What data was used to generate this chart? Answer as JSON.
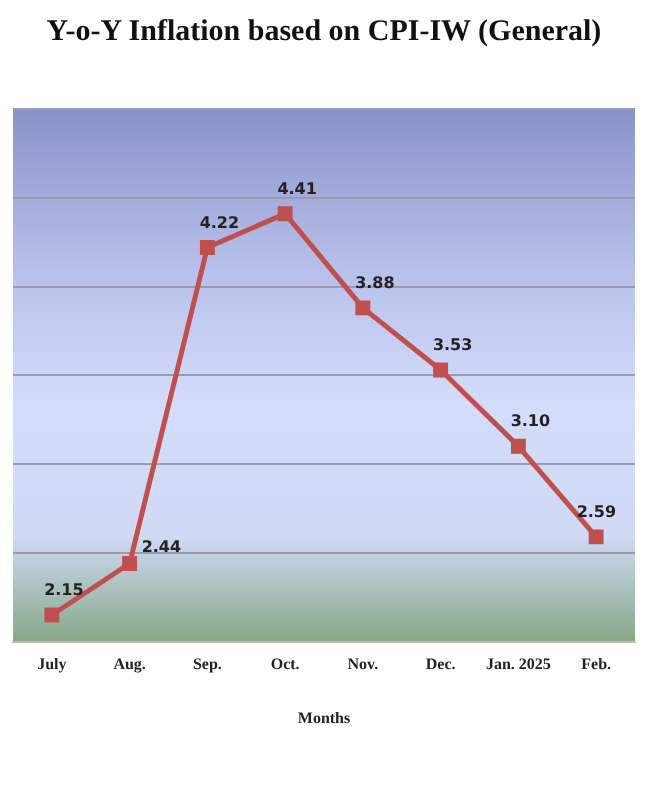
{
  "chart_data": {
    "type": "line",
    "title": "Y-o-Y Inflation based on CPI-IW (General)",
    "xlabel": "Months",
    "categories": [
      "July",
      "Aug.",
      "Sep.",
      "Oct.",
      "Nov.",
      "Dec.",
      "Jan. 2025",
      "Feb."
    ],
    "series": [
      {
        "color": "#c0504d",
        "values": [
          2.15,
          2.44,
          4.22,
          4.41,
          3.88,
          3.53,
          3.1,
          2.59
        ],
        "value_labels": [
          "2.15",
          "2.44",
          "4.22",
          "4.41",
          "3.88",
          "3.53",
          "3.10",
          "2.59"
        ]
      }
    ],
    "ylim": [
      2,
      5
    ],
    "yticks": [
      {
        "value": 2,
        "label": null
      },
      {
        "value": 2.5,
        "label": null
      },
      {
        "value": 3,
        "label": null
      },
      {
        "value": 3.5,
        "label": null
      },
      {
        "value": 4,
        "label": null
      },
      {
        "value": 4.5,
        "label": null
      },
      {
        "value": 5,
        "label": null
      }
    ],
    "grid": "y",
    "tick_labels": "x",
    "marker": "square",
    "line_style": "solid",
    "legend": false
  }
}
